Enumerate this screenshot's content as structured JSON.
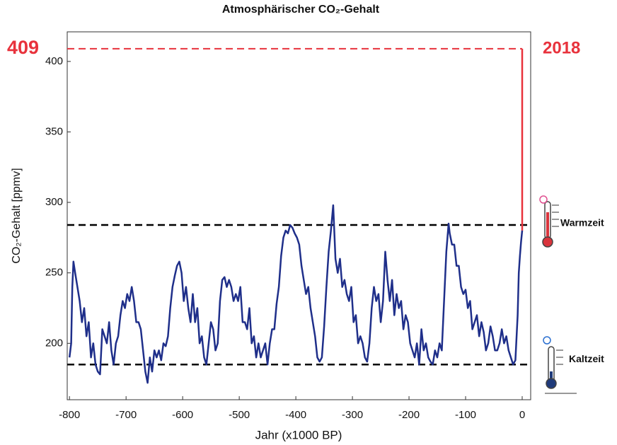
{
  "chart_data": {
    "type": "line",
    "title": "Atmosphärischer CO₂-Gehalt",
    "x_label": "Jahr (x1000 BP)",
    "y_label": "CO₂-Gehalt [ppmv]",
    "xlim": [
      -804,
      15
    ],
    "ylim": [
      160,
      421
    ],
    "xticks": [
      -800,
      -700,
      -600,
      -500,
      -400,
      -300,
      -200,
      -100,
      0
    ],
    "yticks": [
      200,
      250,
      300,
      350,
      400
    ],
    "series": [
      {
        "color": "#1f2f8a",
        "x": [
          -800,
          -797,
          -795,
          -793,
          -790,
          -786,
          -782,
          -778,
          -774,
          -770,
          -766,
          -762,
          -758,
          -754,
          -750,
          -746,
          -742,
          -738,
          -734,
          -730,
          -726,
          -722,
          -718,
          -714,
          -710,
          -706,
          -702,
          -698,
          -694,
          -690,
          -686,
          -682,
          -678,
          -674,
          -670,
          -666,
          -662,
          -658,
          -654,
          -650,
          -646,
          -642,
          -638,
          -634,
          -630,
          -626,
          -622,
          -618,
          -614,
          -610,
          -606,
          -602,
          -598,
          -594,
          -590,
          -586,
          -582,
          -578,
          -574,
          -570,
          -566,
          -562,
          -558,
          -554,
          -550,
          -546,
          -542,
          -538,
          -534,
          -530,
          -526,
          -522,
          -518,
          -514,
          -510,
          -506,
          -502,
          -498,
          -494,
          -490,
          -486,
          -482,
          -478,
          -474,
          -470,
          -466,
          -462,
          -458,
          -454,
          -450,
          -446,
          -442,
          -438,
          -434,
          -430,
          -426,
          -422,
          -418,
          -414,
          -410,
          -406,
          -402,
          -398,
          -394,
          -390,
          -386,
          -382,
          -378,
          -374,
          -370,
          -366,
          -362,
          -358,
          -354,
          -350,
          -346,
          -342,
          -338,
          -334,
          -330,
          -326,
          -322,
          -318,
          -314,
          -310,
          -306,
          -302,
          -298,
          -294,
          -290,
          -286,
          -282,
          -278,
          -274,
          -270,
          -266,
          -262,
          -258,
          -254,
          -250,
          -246,
          -242,
          -238,
          -234,
          -230,
          -226,
          -222,
          -218,
          -214,
          -210,
          -206,
          -202,
          -198,
          -194,
          -190,
          -186,
          -182,
          -178,
          -174,
          -170,
          -166,
          -162,
          -158,
          -154,
          -150,
          -146,
          -142,
          -138,
          -134,
          -130,
          -128,
          -124,
          -120,
          -116,
          -112,
          -108,
          -104,
          -100,
          -96,
          -92,
          -88,
          -84,
          -80,
          -76,
          -72,
          -68,
          -64,
          -60,
          -56,
          -52,
          -48,
          -44,
          -40,
          -36,
          -32,
          -28,
          -24,
          -20,
          -16,
          -12,
          -8,
          -6,
          -4,
          -2,
          0
        ],
        "values": [
          190,
          200,
          240,
          258,
          250,
          240,
          230,
          215,
          225,
          205,
          215,
          190,
          200,
          185,
          180,
          178,
          210,
          205,
          200,
          215,
          195,
          185,
          200,
          205,
          220,
          230,
          225,
          235,
          230,
          240,
          230,
          215,
          215,
          210,
          195,
          180,
          172,
          190,
          180,
          195,
          190,
          195,
          188,
          200,
          198,
          205,
          225,
          240,
          248,
          255,
          258,
          250,
          230,
          240,
          225,
          215,
          235,
          215,
          225,
          200,
          205,
          190,
          185,
          200,
          215,
          210,
          195,
          200,
          230,
          245,
          247,
          240,
          245,
          240,
          230,
          235,
          230,
          240,
          215,
          215,
          210,
          225,
          200,
          205,
          190,
          200,
          190,
          195,
          200,
          185,
          200,
          210,
          210,
          228,
          240,
          262,
          275,
          280,
          278,
          284,
          282,
          278,
          275,
          270,
          255,
          245,
          235,
          240,
          225,
          215,
          205,
          190,
          187,
          190,
          212,
          240,
          265,
          280,
          298,
          260,
          250,
          260,
          240,
          245,
          235,
          230,
          240,
          215,
          220,
          200,
          205,
          200,
          190,
          187,
          200,
          225,
          240,
          230,
          235,
          215,
          230,
          265,
          245,
          230,
          245,
          220,
          235,
          225,
          230,
          210,
          220,
          215,
          200,
          195,
          190,
          200,
          185,
          210,
          195,
          200,
          190,
          187,
          185,
          195,
          190,
          200,
          195,
          230,
          265,
          285,
          278,
          270,
          270,
          255,
          255,
          240,
          235,
          238,
          225,
          230,
          210,
          215,
          220,
          205,
          215,
          208,
          195,
          200,
          212,
          205,
          195,
          195,
          200,
          210,
          200,
          205,
          195,
          190,
          185,
          188,
          220,
          250,
          262,
          272,
          280
        ]
      }
    ],
    "reference_lines": [
      {
        "value": 284,
        "label": "Warmzeit"
      },
      {
        "value": 185,
        "label": "Kaltzeit"
      }
    ],
    "current": {
      "value": 409,
      "year": "2018",
      "color": "#e8323c"
    }
  }
}
